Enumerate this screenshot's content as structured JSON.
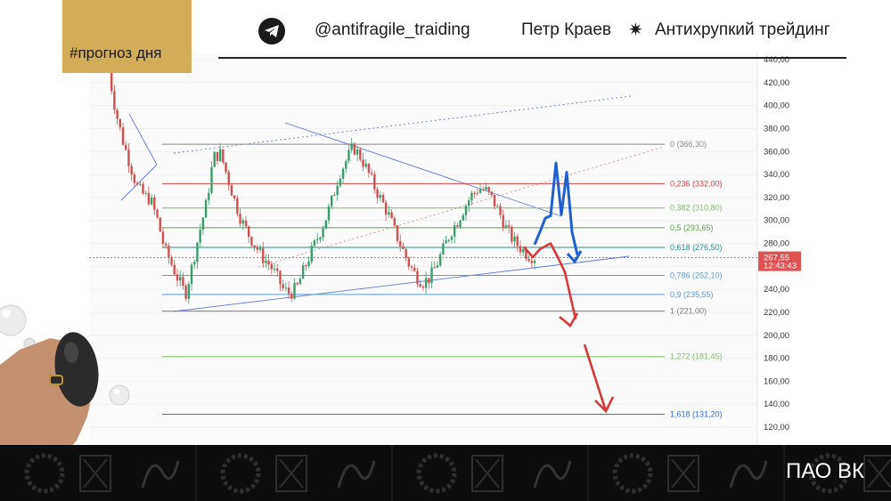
{
  "header": {
    "tag": "#прогноз дня",
    "handle": "@antifragile_traiding",
    "author": "Петр Краев",
    "brand": "Антихрупкий трейдинг",
    "star_icon": "✷",
    "telegram_icon": "telegram-icon"
  },
  "footer": {
    "ticker": "ПАО ВК",
    "pattern_icon": "monogram-laurel-pattern"
  },
  "chart_data": {
    "type": "candlestick-with-annotations",
    "ylim": [
      110,
      445
    ],
    "y_ticks": [
      {
        "value": 440,
        "label": "440,00"
      },
      {
        "value": 420,
        "label": "420,00"
      },
      {
        "value": 400,
        "label": "400,00"
      },
      {
        "value": 380,
        "label": "380,00"
      },
      {
        "value": 360,
        "label": "360,00"
      },
      {
        "value": 340,
        "label": "340,00"
      },
      {
        "value": 320,
        "label": "320,00"
      },
      {
        "value": 300,
        "label": "300,00"
      },
      {
        "value": 280,
        "label": "280,00"
      },
      {
        "value": 260,
        "label": "260,00"
      },
      {
        "value": 240,
        "label": "240,00"
      },
      {
        "value": 220,
        "label": "220,00"
      },
      {
        "value": 200,
        "label": "200,00"
      },
      {
        "value": 180,
        "label": "180,00"
      },
      {
        "value": 160,
        "label": "160,00"
      },
      {
        "value": 140,
        "label": "140,00"
      },
      {
        "value": 120,
        "label": "120,00"
      }
    ],
    "current_price": {
      "value": 267.55,
      "label": "267,55",
      "time": "12:43:43",
      "color": "#e05252"
    },
    "fib_levels": [
      {
        "ratio": "0",
        "price": 366.3,
        "label": "0 (366,30)",
        "color": "#8a8a8a"
      },
      {
        "ratio": "0,236",
        "price": 332.0,
        "label": "0,236 (332,00)",
        "color": "#d64545"
      },
      {
        "ratio": "0,382",
        "price": 310.8,
        "label": "0,382 (310,80)",
        "color": "#7cbf6a"
      },
      {
        "ratio": "0,5",
        "price": 293.65,
        "label": "0,5 (293,65)",
        "color": "#5aa34a"
      },
      {
        "ratio": "0,618",
        "price": 276.5,
        "label": "0,618 (276,50)",
        "color": "#1f8f8a"
      },
      {
        "ratio": "0,786",
        "price": 252.1,
        "label": "0,786 (252,10)",
        "color": "#5b9bd5"
      },
      {
        "ratio": "0,9",
        "price": 235.55,
        "label": "0,9 (235,55)",
        "color": "#5b9bd5"
      },
      {
        "ratio": "1",
        "price": 221.0,
        "label": "1 (221,00)",
        "color": "#7a7a7a"
      },
      {
        "ratio": "1,272",
        "price": 181.45,
        "label": "1,272 (181,45)",
        "color": "#7cbf6a"
      },
      {
        "ratio": "1,618",
        "price": 131.2,
        "label": "1,618 (131,20)",
        "color": "#2f6fd6"
      }
    ],
    "series": [
      {
        "values": [
          430,
          395,
          370,
          350,
          330,
          322,
          318,
          300,
          275,
          262,
          248,
          236,
          262,
          290,
          315,
          355,
          358,
          338,
          318,
          300,
          288,
          278,
          268,
          262,
          252,
          240,
          236,
          242,
          258,
          272,
          286,
          300,
          318,
          340,
          352,
          364,
          356,
          344,
          330,
          318,
          306,
          290,
          276,
          262,
          252,
          246,
          250,
          262,
          276,
          290,
          300,
          312,
          322,
          328,
          326,
          318,
          306,
          292,
          282,
          276,
          270,
          268
        ]
      }
    ],
    "scenario_up": [
      279,
      290,
      302,
      304,
      350,
      305,
      342,
      290,
      270
    ],
    "scenario_down": [
      277,
      268,
      275,
      280,
      268,
      255,
      214,
      192,
      134
    ]
  }
}
